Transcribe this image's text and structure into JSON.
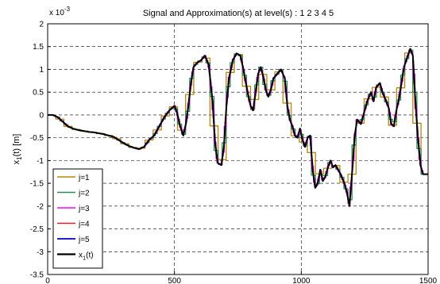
{
  "chart_data": {
    "type": "line",
    "title": "Signal and Approximation(s) at level(s) : 1 2 3 4 5",
    "ylabel_main": "x",
    "ylabel_sub": "1",
    "ylabel_tail": "(t) [m]",
    "y_multiplier_base": "x 10",
    "y_multiplier_exp": "-3",
    "xlim": [
      0,
      1500
    ],
    "ylim": [
      -3.5,
      2
    ],
    "x_ticks": [
      {
        "v": 0,
        "label": "0"
      },
      {
        "v": 500,
        "label": "500"
      },
      {
        "v": 1000,
        "label": "1000"
      },
      {
        "v": 1500,
        "label": "1500"
      }
    ],
    "y_ticks": [
      {
        "v": 2,
        "label": "2"
      },
      {
        "v": 1.5,
        "label": "1.5"
      },
      {
        "v": 1,
        "label": "1"
      },
      {
        "v": 0.5,
        "label": "0.5"
      },
      {
        "v": 0,
        "label": "0"
      },
      {
        "v": -0.5,
        "label": "-0.5"
      },
      {
        "v": -1,
        "label": "-1"
      },
      {
        "v": -1.5,
        "label": "-1.5"
      },
      {
        "v": -2,
        "label": "-2"
      },
      {
        "v": -2.5,
        "label": "-2.5"
      },
      {
        "v": -3,
        "label": "-3"
      },
      {
        "v": -3.5,
        "label": "-3.5"
      }
    ],
    "grid": true,
    "legend_position": "bottom-left",
    "signal_points": [
      [
        0,
        0
      ],
      [
        20,
        0
      ],
      [
        40,
        -0.05
      ],
      [
        60,
        -0.15
      ],
      [
        80,
        -0.25
      ],
      [
        100,
        -0.3
      ],
      [
        120,
        -0.33
      ],
      [
        140,
        -0.35
      ],
      [
        160,
        -0.37
      ],
      [
        180,
        -0.38
      ],
      [
        200,
        -0.4
      ],
      [
        220,
        -0.42
      ],
      [
        240,
        -0.45
      ],
      [
        260,
        -0.48
      ],
      [
        280,
        -0.55
      ],
      [
        300,
        -0.62
      ],
      [
        320,
        -0.68
      ],
      [
        340,
        -0.72
      ],
      [
        360,
        -0.75
      ],
      [
        380,
        -0.7
      ],
      [
        400,
        -0.55
      ],
      [
        420,
        -0.45
      ],
      [
        440,
        -0.25
      ],
      [
        460,
        -0.05
      ],
      [
        480,
        0.1
      ],
      [
        500,
        0.2
      ],
      [
        510,
        0.05
      ],
      [
        520,
        -0.2
      ],
      [
        535,
        -0.45
      ],
      [
        545,
        -0.2
      ],
      [
        555,
        0.2
      ],
      [
        565,
        0.7
      ],
      [
        575,
        1.05
      ],
      [
        590,
        1.15
      ],
      [
        605,
        1.2
      ],
      [
        620,
        1.3
      ],
      [
        635,
        1.1
      ],
      [
        650,
        0.3
      ],
      [
        660,
        -0.6
      ],
      [
        670,
        -1.05
      ],
      [
        685,
        -1.1
      ],
      [
        695,
        -0.7
      ],
      [
        705,
        0.2
      ],
      [
        715,
        0.8
      ],
      [
        730,
        1.2
      ],
      [
        745,
        1.35
      ],
      [
        760,
        1.3
      ],
      [
        770,
        1.05
      ],
      [
        780,
        0.75
      ],
      [
        790,
        0.45
      ],
      [
        800,
        0.2
      ],
      [
        810,
        0.1
      ],
      [
        820,
        0.5
      ],
      [
        830,
        0.9
      ],
      [
        840,
        1.05
      ],
      [
        850,
        0.85
      ],
      [
        860,
        0.55
      ],
      [
        870,
        0.4
      ],
      [
        880,
        0.55
      ],
      [
        890,
        0.8
      ],
      [
        905,
        0.9
      ],
      [
        920,
        1.0
      ],
      [
        935,
        0.8
      ],
      [
        945,
        0.2
      ],
      [
        955,
        -0.1
      ],
      [
        965,
        -0.25
      ],
      [
        975,
        -0.45
      ],
      [
        985,
        -0.5
      ],
      [
        995,
        -0.3
      ],
      [
        1005,
        -0.55
      ],
      [
        1015,
        -0.7
      ],
      [
        1025,
        -0.5
      ],
      [
        1035,
        -0.45
      ],
      [
        1045,
        -1.2
      ],
      [
        1055,
        -1.6
      ],
      [
        1065,
        -1.5
      ],
      [
        1075,
        -1.2
      ],
      [
        1085,
        -1.45
      ],
      [
        1095,
        -1.35
      ],
      [
        1105,
        -1.15
      ],
      [
        1115,
        -1.0
      ],
      [
        1125,
        -1.15
      ],
      [
        1135,
        -1.1
      ],
      [
        1145,
        -1.2
      ],
      [
        1155,
        -1.3
      ],
      [
        1170,
        -1.5
      ],
      [
        1180,
        -1.7
      ],
      [
        1190,
        -2.0
      ],
      [
        1200,
        -1.3
      ],
      [
        1210,
        -0.5
      ],
      [
        1220,
        -0.1
      ],
      [
        1235,
        -0.2
      ],
      [
        1250,
        0.1
      ],
      [
        1260,
        0.3
      ],
      [
        1275,
        0.5
      ],
      [
        1285,
        0.3
      ],
      [
        1295,
        0.6
      ],
      [
        1310,
        0.7
      ],
      [
        1320,
        0.5
      ],
      [
        1335,
        0.3
      ],
      [
        1345,
        0.15
      ],
      [
        1355,
        -0.2
      ],
      [
        1365,
        -0.25
      ],
      [
        1375,
        0.1
      ],
      [
        1385,
        0.35
      ],
      [
        1395,
        0.7
      ],
      [
        1405,
        1.05
      ],
      [
        1420,
        1.3
      ],
      [
        1430,
        1.45
      ],
      [
        1440,
        1.3
      ],
      [
        1450,
        0.3
      ],
      [
        1460,
        -0.5
      ],
      [
        1470,
        -1.1
      ],
      [
        1480,
        -1.3
      ],
      [
        1490,
        -1.3
      ],
      [
        1500,
        -1.3
      ]
    ],
    "series": [
      {
        "name": "j=1",
        "color": "#b8860b",
        "step": 1,
        "width": 1.3
      },
      {
        "name": "j=2",
        "color": "#2e8b57",
        "step": 1,
        "width": 1.3
      },
      {
        "name": "j=3",
        "color": "#ff00ff",
        "step": 1,
        "width": 1.3
      },
      {
        "name": "j=4",
        "color": "#d62728",
        "step": 1,
        "width": 1.3
      },
      {
        "name": "j=5",
        "color": "#1f1fd0",
        "step": 1,
        "width": 1.6
      },
      {
        "name": "x1(t)",
        "name_main": "x",
        "name_sub": "1",
        "name_tail": "(t)",
        "color": "#000000",
        "step": 0,
        "width": 2
      }
    ]
  }
}
